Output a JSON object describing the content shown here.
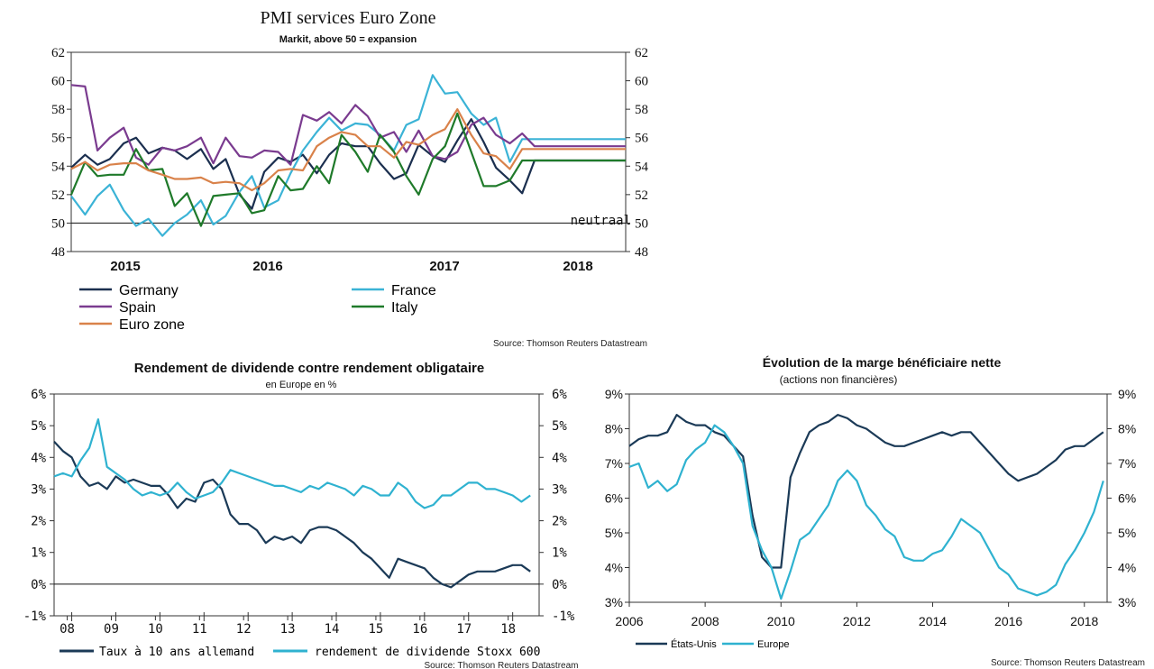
{
  "colors": {
    "germany": "#1b2f4f",
    "france": "#3bb3d6",
    "spain": "#7a3b8f",
    "italy": "#1f7a2a",
    "eurozone": "#d9824a",
    "navy": "#1b3a57",
    "cyan": "#2fb2d0"
  },
  "chart_data": [
    {
      "type": "line",
      "title": "PMI services Euro Zone",
      "subtitle": "Markit, above 50 = expansion",
      "ylim": [
        48,
        62
      ],
      "yticks": [
        "48",
        "50",
        "52",
        "54",
        "56",
        "58",
        "60",
        "62"
      ],
      "xticks": [
        "2015",
        "2016",
        "2017",
        "2018"
      ],
      "xlim": [
        2014.83,
        2018.42
      ],
      "reference": {
        "value": 50,
        "label": "neutraal"
      },
      "legend": [
        "Germany",
        "France",
        "Spain",
        "Italy",
        "Euro zone"
      ],
      "source": "Source: Thomson Reuters Datastream",
      "x": [
        2014.83,
        2014.92,
        2015.0,
        2015.08,
        2015.17,
        2015.25,
        2015.33,
        2015.42,
        2015.5,
        2015.58,
        2015.67,
        2015.75,
        2015.83,
        2015.92,
        2016.0,
        2016.08,
        2016.17,
        2016.25,
        2016.33,
        2016.42,
        2016.5,
        2016.58,
        2016.67,
        2016.75,
        2016.83,
        2016.92,
        2017.0,
        2017.08,
        2017.17,
        2017.25,
        2017.33,
        2017.42,
        2017.5,
        2017.58,
        2017.67,
        2017.75,
        2017.83,
        2017.92,
        2018.0,
        2018.08,
        2018.17,
        2018.25,
        2018.33,
        2018.42
      ],
      "series": [
        {
          "name": "Germany",
          "values": [
            53.9,
            54.8,
            54.1,
            54.5,
            55.6,
            56.0,
            54.9,
            55.3,
            55.1,
            54.5,
            55.2,
            53.8,
            54.5,
            52.0,
            51.0,
            53.6,
            54.6,
            54.3,
            54.8,
            53.5,
            54.8,
            55.6,
            55.4,
            55.4,
            54.2,
            53.1,
            53.5,
            55.5,
            54.7,
            54.3,
            55.8,
            57.3,
            55.7,
            53.9,
            53.0,
            52.1,
            54.4,
            54.4,
            54.4,
            54.4,
            54.4,
            54.4,
            54.4,
            54.4
          ]
        },
        {
          "name": "France",
          "values": [
            51.9,
            50.6,
            51.9,
            52.7,
            50.9,
            49.8,
            50.3,
            49.1,
            50.0,
            50.6,
            51.6,
            49.9,
            50.5,
            52.2,
            53.3,
            51.1,
            51.6,
            53.5,
            55.1,
            56.4,
            57.4,
            56.5,
            57.0,
            56.9,
            56.2,
            55.1,
            56.9,
            57.3,
            60.4,
            59.1,
            59.2,
            57.7,
            56.9,
            57.4,
            54.3,
            55.9,
            55.9,
            55.9,
            55.9,
            55.9,
            55.9,
            55.9,
            55.9,
            55.9
          ]
        },
        {
          "name": "Spain",
          "values": [
            59.7,
            59.6,
            55.1,
            56.0,
            56.7,
            54.6,
            54.1,
            55.3,
            55.1,
            55.4,
            56.0,
            54.2,
            56.0,
            54.7,
            54.6,
            55.1,
            55.0,
            54.1,
            57.6,
            57.2,
            57.8,
            57.0,
            58.3,
            57.5,
            56.0,
            56.4,
            55.0,
            56.5,
            54.7,
            54.5,
            55.0,
            56.9,
            57.4,
            56.2,
            55.6,
            56.3,
            55.4,
            55.4,
            55.4,
            55.4,
            55.4,
            55.4,
            55.4,
            55.4
          ]
        },
        {
          "name": "Italy",
          "values": [
            52.0,
            54.3,
            53.3,
            53.4,
            53.4,
            55.2,
            53.7,
            53.8,
            51.2,
            52.1,
            49.8,
            51.9,
            52.0,
            52.1,
            50.7,
            50.9,
            53.3,
            52.3,
            52.4,
            54.0,
            52.8,
            56.2,
            55.0,
            53.6,
            56.2,
            55.0,
            53.3,
            52.0,
            54.5,
            55.4,
            57.7,
            55.0,
            52.6,
            52.6,
            53.0,
            54.4,
            54.4,
            54.4,
            54.4,
            54.4,
            54.4,
            54.4,
            54.4,
            54.4
          ]
        },
        {
          "name": "Euro zone",
          "values": [
            53.8,
            54.3,
            53.7,
            54.1,
            54.2,
            54.2,
            53.7,
            53.4,
            53.1,
            53.1,
            53.2,
            52.8,
            52.9,
            52.8,
            52.3,
            52.8,
            53.7,
            53.8,
            53.7,
            55.4,
            56.0,
            56.4,
            56.2,
            55.4,
            55.4,
            54.6,
            55.7,
            55.5,
            56.2,
            56.6,
            58.0,
            56.2,
            54.9,
            54.7,
            53.8,
            55.2,
            55.2,
            55.2,
            55.2,
            55.2,
            55.2,
            55.2,
            55.2,
            55.2
          ]
        }
      ]
    },
    {
      "type": "line",
      "title": "Rendement de dividende contre rendement obligataire",
      "subtitle": "en Europe en %",
      "ylim": [
        -1,
        6
      ],
      "yticks": [
        "-1%",
        "0%",
        "1%",
        "2%",
        "3%",
        "4%",
        "5%",
        "6%"
      ],
      "xticks": [
        "08",
        "09",
        "10",
        "11",
        "12",
        "13",
        "14",
        "15",
        "16",
        "17",
        "18"
      ],
      "xlim": [
        2007.6,
        2018.6
      ],
      "legend": [
        "Taux à 10 ans allemand",
        "rendement de dividende Stoxx 600"
      ],
      "source": "Source: Thomson Reuters Datastream",
      "x": [
        2007.6,
        2007.8,
        2008.0,
        2008.2,
        2008.4,
        2008.6,
        2008.8,
        2009.0,
        2009.2,
        2009.4,
        2009.6,
        2009.8,
        2010.0,
        2010.2,
        2010.4,
        2010.6,
        2010.8,
        2011.0,
        2011.2,
        2011.4,
        2011.6,
        2011.8,
        2012.0,
        2012.2,
        2012.4,
        2012.6,
        2012.8,
        2013.0,
        2013.2,
        2013.4,
        2013.6,
        2013.8,
        2014.0,
        2014.2,
        2014.4,
        2014.6,
        2014.8,
        2015.0,
        2015.2,
        2015.4,
        2015.6,
        2015.8,
        2016.0,
        2016.2,
        2016.4,
        2016.6,
        2016.8,
        2017.0,
        2017.2,
        2017.4,
        2017.6,
        2017.8,
        2018.0,
        2018.2,
        2018.4
      ],
      "series": [
        {
          "name": "Taux à 10 ans allemand",
          "values": [
            4.5,
            4.2,
            4.0,
            3.4,
            3.1,
            3.2,
            3.0,
            3.4,
            3.2,
            3.3,
            3.2,
            3.1,
            3.1,
            2.8,
            2.4,
            2.7,
            2.6,
            3.2,
            3.3,
            3.0,
            2.2,
            1.9,
            1.9,
            1.7,
            1.3,
            1.5,
            1.4,
            1.5,
            1.3,
            1.7,
            1.8,
            1.8,
            1.7,
            1.5,
            1.3,
            1.0,
            0.8,
            0.5,
            0.2,
            0.8,
            0.7,
            0.6,
            0.5,
            0.2,
            0.0,
            -0.1,
            0.1,
            0.3,
            0.4,
            0.4,
            0.4,
            0.5,
            0.6,
            0.6,
            0.4
          ]
        },
        {
          "name": "rendement de dividende Stoxx 600",
          "values": [
            3.4,
            3.5,
            3.4,
            3.9,
            4.3,
            5.2,
            3.7,
            3.5,
            3.3,
            3.0,
            2.8,
            2.9,
            2.8,
            2.9,
            3.2,
            2.9,
            2.7,
            2.8,
            2.9,
            3.2,
            3.6,
            3.5,
            3.4,
            3.3,
            3.2,
            3.1,
            3.1,
            3.0,
            2.9,
            3.1,
            3.0,
            3.2,
            3.1,
            3.0,
            2.8,
            3.1,
            3.0,
            2.8,
            2.8,
            3.2,
            3.0,
            2.6,
            2.4,
            2.5,
            2.8,
            2.8,
            3.0,
            3.2,
            3.2,
            3.0,
            3.0,
            2.9,
            2.8,
            2.6,
            2.8
          ]
        }
      ]
    },
    {
      "type": "line",
      "title": "Évolution de la marge bénéficiaire nette",
      "subtitle": "(actions non financières)",
      "ylim": [
        3,
        9
      ],
      "yticks": [
        "3%",
        "4%",
        "5%",
        "6%",
        "7%",
        "8%",
        "9%"
      ],
      "xticks": [
        "2006",
        "2008",
        "2010",
        "2012",
        "2014",
        "2016",
        "2018"
      ],
      "xlim": [
        2006,
        2018.6
      ],
      "legend": [
        "États-Unis",
        "Europe"
      ],
      "source": "Source: Thomson Reuters Datastream",
      "x": [
        2006.0,
        2006.25,
        2006.5,
        2006.75,
        2007.0,
        2007.25,
        2007.5,
        2007.75,
        2008.0,
        2008.25,
        2008.5,
        2008.75,
        2009.0,
        2009.25,
        2009.5,
        2009.75,
        2010.0,
        2010.25,
        2010.5,
        2010.75,
        2011.0,
        2011.25,
        2011.5,
        2011.75,
        2012.0,
        2012.25,
        2012.5,
        2012.75,
        2013.0,
        2013.25,
        2013.5,
        2013.75,
        2014.0,
        2014.25,
        2014.5,
        2014.75,
        2015.0,
        2015.25,
        2015.5,
        2015.75,
        2016.0,
        2016.25,
        2016.5,
        2016.75,
        2017.0,
        2017.25,
        2017.5,
        2017.75,
        2018.0,
        2018.25,
        2018.5
      ],
      "series": [
        {
          "name": "États-Unis",
          "values": [
            7.5,
            7.7,
            7.8,
            7.8,
            7.9,
            8.4,
            8.2,
            8.1,
            8.1,
            7.9,
            7.8,
            7.5,
            7.2,
            5.5,
            4.3,
            4.0,
            4.0,
            6.6,
            7.3,
            7.9,
            8.1,
            8.2,
            8.4,
            8.3,
            8.1,
            8.0,
            7.8,
            7.6,
            7.5,
            7.5,
            7.6,
            7.7,
            7.8,
            7.9,
            7.8,
            7.9,
            7.9,
            7.6,
            7.3,
            7.0,
            6.7,
            6.5,
            6.6,
            6.7,
            6.9,
            7.1,
            7.4,
            7.5,
            7.5,
            7.7,
            7.9
          ]
        },
        {
          "name": "Europe",
          "values": [
            6.9,
            7.0,
            6.3,
            6.5,
            6.2,
            6.4,
            7.1,
            7.4,
            7.6,
            8.1,
            7.9,
            7.5,
            7.0,
            5.2,
            4.5,
            4.0,
            3.1,
            3.9,
            4.8,
            5.0,
            5.4,
            5.8,
            6.5,
            6.8,
            6.5,
            5.8,
            5.5,
            5.1,
            4.9,
            4.3,
            4.2,
            4.2,
            4.4,
            4.5,
            4.9,
            5.4,
            5.2,
            5.0,
            4.5,
            4.0,
            3.8,
            3.4,
            3.3,
            3.2,
            3.3,
            3.5,
            4.1,
            4.5,
            5.0,
            5.6,
            6.5
          ]
        }
      ]
    }
  ]
}
